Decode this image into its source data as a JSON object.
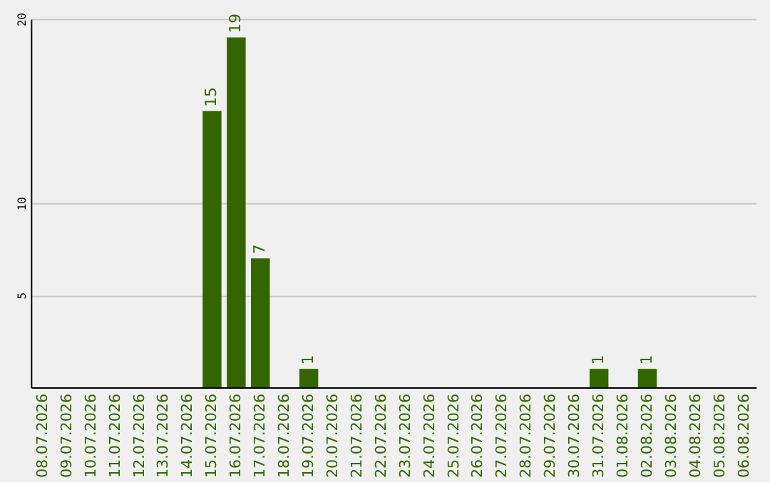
{
  "chart_data": {
    "type": "bar",
    "categories": [
      "08.07.2026",
      "09.07.2026",
      "10.07.2026",
      "11.07.2026",
      "12.07.2026",
      "13.07.2026",
      "14.07.2026",
      "15.07.2026",
      "16.07.2026",
      "17.07.2026",
      "18.07.2026",
      "19.07.2026",
      "20.07.2026",
      "21.07.2026",
      "22.07.2026",
      "23.07.2026",
      "24.07.2026",
      "25.07.2026",
      "26.07.2026",
      "27.07.2026",
      "28.07.2026",
      "29.07.2026",
      "30.07.2026",
      "31.07.2026",
      "01.08.2026",
      "02.08.2026",
      "03.08.2026",
      "04.08.2026",
      "05.08.2026",
      "06.08.2026"
    ],
    "values": [
      0,
      0,
      0,
      0,
      0,
      0,
      0,
      15,
      19,
      7,
      0,
      1,
      0,
      0,
      0,
      0,
      0,
      0,
      0,
      0,
      0,
      0,
      0,
      1,
      0,
      1,
      0,
      0,
      0,
      0
    ],
    "value_labels": [
      null,
      null,
      null,
      null,
      null,
      null,
      null,
      "15",
      "19",
      "7",
      null,
      "1",
      null,
      null,
      null,
      null,
      null,
      null,
      null,
      null,
      null,
      null,
      null,
      "1",
      null,
      "1",
      null,
      null,
      null,
      null
    ],
    "color": "#336600",
    "ylim": [
      0,
      20
    ],
    "yticks": [
      5,
      10,
      20
    ],
    "grid": "y"
  }
}
